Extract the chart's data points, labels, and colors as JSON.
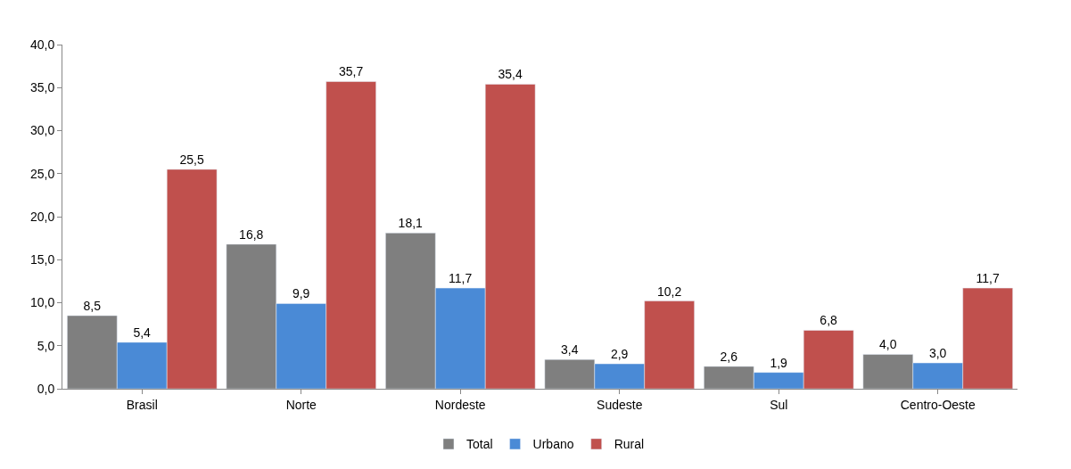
{
  "chart_data": {
    "type": "bar",
    "categories": [
      "Brasil",
      "Norte",
      "Nordeste",
      "Sudeste",
      "Sul",
      "Centro-Oeste"
    ],
    "series": [
      {
        "name": "Total",
        "color": "#7f7f7f",
        "values": [
          8.5,
          16.8,
          18.1,
          3.4,
          2.6,
          4.0
        ],
        "value_labels": [
          "8,5",
          "16,8",
          "18,1",
          "3,4",
          "2,6",
          "4,0"
        ]
      },
      {
        "name": "Urbano",
        "color": "#4a8ad6",
        "values": [
          5.4,
          9.9,
          11.7,
          2.9,
          1.9,
          3.0
        ],
        "value_labels": [
          "5,4",
          "9,9",
          "11,7",
          "2,9",
          "1,9",
          "3,0"
        ]
      },
      {
        "name": "Rural",
        "color": "#c0504d",
        "values": [
          25.5,
          35.7,
          35.4,
          10.2,
          6.8,
          11.7
        ],
        "value_labels": [
          "25,5",
          "35,7",
          "35,4",
          "10,2",
          "6,8",
          "11,7"
        ]
      }
    ],
    "ylim": [
      0,
      40
    ],
    "yticks": [
      {
        "value": 0,
        "label": "0,0"
      },
      {
        "value": 5,
        "label": "5,0"
      },
      {
        "value": 10,
        "label": "10,0"
      },
      {
        "value": 15,
        "label": "15,0"
      },
      {
        "value": 20,
        "label": "20,0"
      },
      {
        "value": 25,
        "label": "25,0"
      },
      {
        "value": 30,
        "label": "30,0"
      },
      {
        "value": 35,
        "label": "35,0"
      },
      {
        "value": 40,
        "label": "40,0"
      }
    ],
    "grid": false,
    "legend": "bottom"
  }
}
